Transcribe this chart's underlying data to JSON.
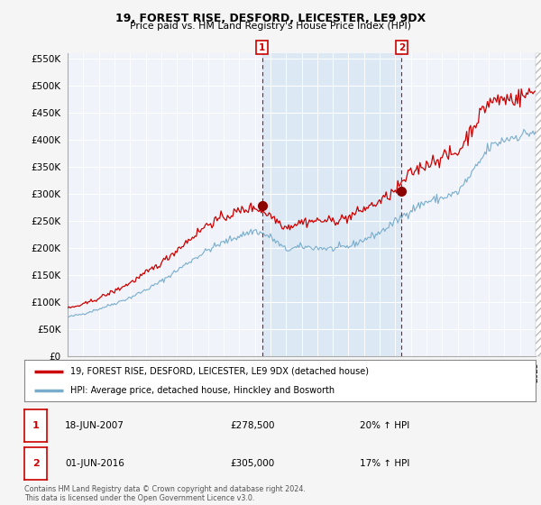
{
  "title": "19, FOREST RISE, DESFORD, LEICESTER, LE9 9DX",
  "subtitle": "Price paid vs. HM Land Registry's House Price Index (HPI)",
  "legend_line1": "19, FOREST RISE, DESFORD, LEICESTER, LE9 9DX (detached house)",
  "legend_line2": "HPI: Average price, detached house, Hinckley and Bosworth",
  "transaction1_label": "1",
  "transaction1_date": "18-JUN-2007",
  "transaction1_price": "£278,500",
  "transaction1_hpi": "20% ↑ HPI",
  "transaction2_label": "2",
  "transaction2_date": "01-JUN-2016",
  "transaction2_price": "£305,000",
  "transaction2_hpi": "17% ↑ HPI",
  "footnote": "Contains HM Land Registry data © Crown copyright and database right 2024.\nThis data is licensed under the Open Government Licence v3.0.",
  "red_color": "#cc0000",
  "blue_color": "#7aadcc",
  "shade_color": "#dce9f5",
  "plot_bg_color": "#f0f4fa",
  "fig_bg_color": "#f5f5f5",
  "grid_color": "#ffffff",
  "ylim": [
    0,
    560000
  ],
  "yticks": [
    0,
    50000,
    100000,
    150000,
    200000,
    250000,
    300000,
    350000,
    400000,
    450000,
    500000,
    550000
  ],
  "ytick_labels": [
    "£0",
    "£50K",
    "£100K",
    "£150K",
    "£200K",
    "£250K",
    "£300K",
    "£350K",
    "£400K",
    "£450K",
    "£500K",
    "£550K"
  ],
  "marker1_x": 2007.46,
  "marker1_y": 278500,
  "marker2_x": 2016.41,
  "marker2_y": 305000,
  "xmin": 1995,
  "xmax": 2025
}
